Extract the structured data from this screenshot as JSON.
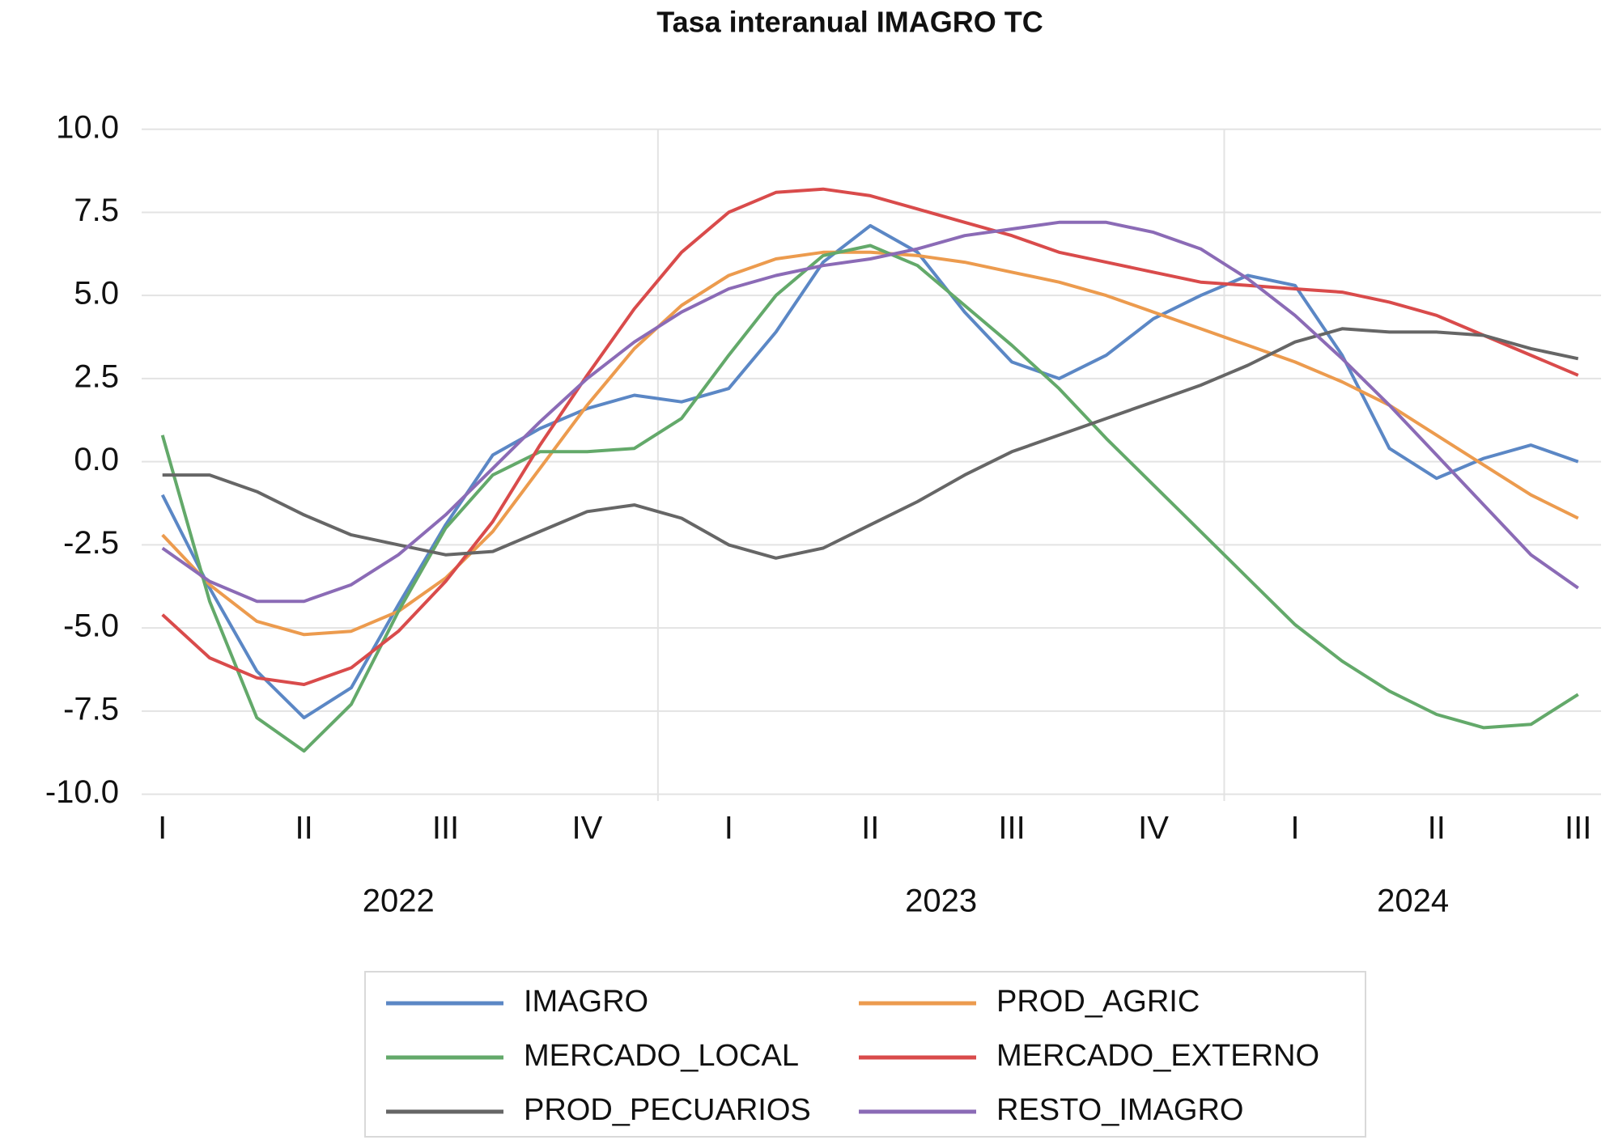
{
  "chart_data": {
    "type": "line",
    "title": "Tasa interanual IMAGRO TC",
    "categories": [
      "I",
      null,
      null,
      "II",
      null,
      null,
      "III",
      null,
      null,
      "IV",
      null,
      null,
      "I",
      null,
      null,
      "II",
      null,
      null,
      "III",
      null,
      null,
      "IV",
      null,
      null,
      "I",
      null,
      null,
      "II",
      null,
      null,
      "III"
    ],
    "year_groups": [
      {
        "label": "2022",
        "start": 0,
        "end": 10
      },
      {
        "label": "2023",
        "start": 11,
        "end": 22
      },
      {
        "label": "2024",
        "start": 23,
        "end": 30
      }
    ],
    "ylim": [
      -10,
      10
    ],
    "yticks": [
      {
        "value": 10,
        "label": "10.0"
      },
      {
        "value": 7.5,
        "label": "7.5"
      },
      {
        "value": 5,
        "label": "5.0"
      },
      {
        "value": 2.5,
        "label": "2.5"
      },
      {
        "value": 0,
        "label": "0.0"
      },
      {
        "value": -2.5,
        "label": "-2.5"
      },
      {
        "value": -5,
        "label": "-5.0"
      },
      {
        "value": -7.5,
        "label": "-7.5"
      },
      {
        "value": -10,
        "label": "-10.0"
      }
    ],
    "grid": true,
    "legend": "bottom",
    "series": [
      {
        "name": "IMAGRO",
        "color": "#5b87c5",
        "values": [
          -1.0,
          -3.8,
          -6.3,
          -7.7,
          -6.8,
          -4.3,
          -1.9,
          0.2,
          1.0,
          1.6,
          2.0,
          1.8,
          2.2,
          3.9,
          6.0,
          7.1,
          6.3,
          4.5,
          3.0,
          2.5,
          3.2,
          4.3,
          5.0,
          5.6,
          5.3,
          3.2,
          0.4,
          -0.5,
          0.1,
          0.5,
          0.0
        ]
      },
      {
        "name": "PROD_AGRIC",
        "color": "#ec9b4e",
        "values": [
          -2.2,
          -3.7,
          -4.8,
          -5.2,
          -5.1,
          -4.5,
          -3.5,
          -2.1,
          -0.2,
          1.7,
          3.4,
          4.7,
          5.6,
          6.1,
          6.3,
          6.3,
          6.2,
          6.0,
          5.7,
          5.4,
          5.0,
          4.5,
          4.0,
          3.5,
          3.0,
          2.4,
          1.7,
          0.8,
          -0.1,
          -1.0,
          -1.7
        ]
      },
      {
        "name": "MERCADO_LOCAL",
        "color": "#63a96a",
        "values": [
          0.8,
          -4.2,
          -7.7,
          -8.7,
          -7.3,
          -4.5,
          -2.0,
          -0.4,
          0.3,
          0.3,
          0.4,
          1.3,
          3.2,
          5.0,
          6.2,
          6.5,
          5.9,
          4.7,
          3.5,
          2.2,
          0.7,
          -0.7,
          -2.1,
          -3.5,
          -4.9,
          -6.0,
          -6.9,
          -7.6,
          -8.0,
          -7.9,
          -7.0
        ]
      },
      {
        "name": "MERCADO_EXTERNO",
        "color": "#d94b4b",
        "values": [
          -4.6,
          -5.9,
          -6.5,
          -6.7,
          -6.2,
          -5.1,
          -3.6,
          -1.8,
          0.5,
          2.6,
          4.6,
          6.3,
          7.5,
          8.1,
          8.2,
          8.0,
          7.6,
          7.2,
          6.8,
          6.3,
          6.0,
          5.7,
          5.4,
          5.3,
          5.2,
          5.1,
          4.8,
          4.4,
          3.8,
          3.2,
          2.6
        ]
      },
      {
        "name": "PROD_PECUARIOS",
        "color": "#666666",
        "values": [
          -0.4,
          -0.4,
          -0.9,
          -1.6,
          -2.2,
          -2.5,
          -2.8,
          -2.7,
          -2.1,
          -1.5,
          -1.3,
          -1.7,
          -2.5,
          -2.9,
          -2.6,
          -1.9,
          -1.2,
          -0.4,
          0.3,
          0.8,
          1.3,
          1.8,
          2.3,
          2.9,
          3.6,
          4.0,
          3.9,
          3.9,
          3.8,
          3.4,
          3.1
        ]
      },
      {
        "name": "RESTO_IMAGRO",
        "color": "#8b6bb6",
        "values": [
          -2.6,
          -3.6,
          -4.2,
          -4.2,
          -3.7,
          -2.8,
          -1.6,
          -0.2,
          1.2,
          2.5,
          3.6,
          4.5,
          5.2,
          5.6,
          5.9,
          6.1,
          6.4,
          6.8,
          7.0,
          7.2,
          7.2,
          6.9,
          6.4,
          5.5,
          4.4,
          3.1,
          1.7,
          0.2,
          -1.3,
          -2.8,
          -3.8
        ]
      }
    ]
  }
}
